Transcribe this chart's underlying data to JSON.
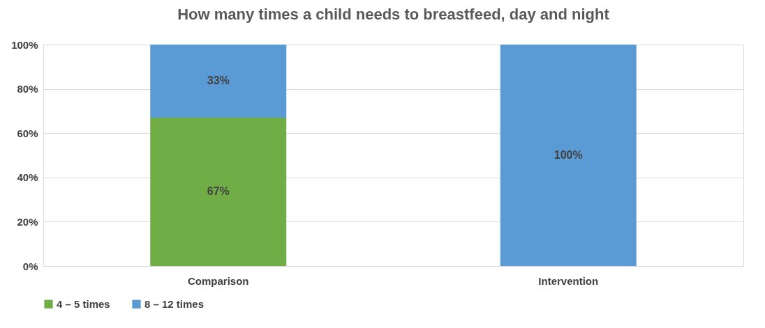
{
  "chart_data": {
    "type": "bar",
    "title": "How many times a child needs to breastfeed, day and night",
    "categories": [
      "Comparison",
      "Intervention"
    ],
    "stacked": true,
    "series": [
      {
        "name": "4 – 5 times",
        "color": "#70ad47",
        "values": [
          67,
          0
        ],
        "value_labels": [
          "67%",
          null
        ]
      },
      {
        "name": "8 – 12 times",
        "color": "#5b9bd5",
        "values": [
          33,
          100
        ],
        "value_labels": [
          "33%",
          "100%"
        ]
      }
    ],
    "ylim": [
      0,
      100
    ],
    "yticks": [
      {
        "value": 0,
        "label": "0%"
      },
      {
        "value": 20,
        "label": "20%"
      },
      {
        "value": 40,
        "label": "40%"
      },
      {
        "value": 60,
        "label": "60%"
      },
      {
        "value": 80,
        "label": "80%"
      },
      {
        "value": 100,
        "label": "100%"
      }
    ],
    "grid": "y",
    "legend": "bottom"
  }
}
